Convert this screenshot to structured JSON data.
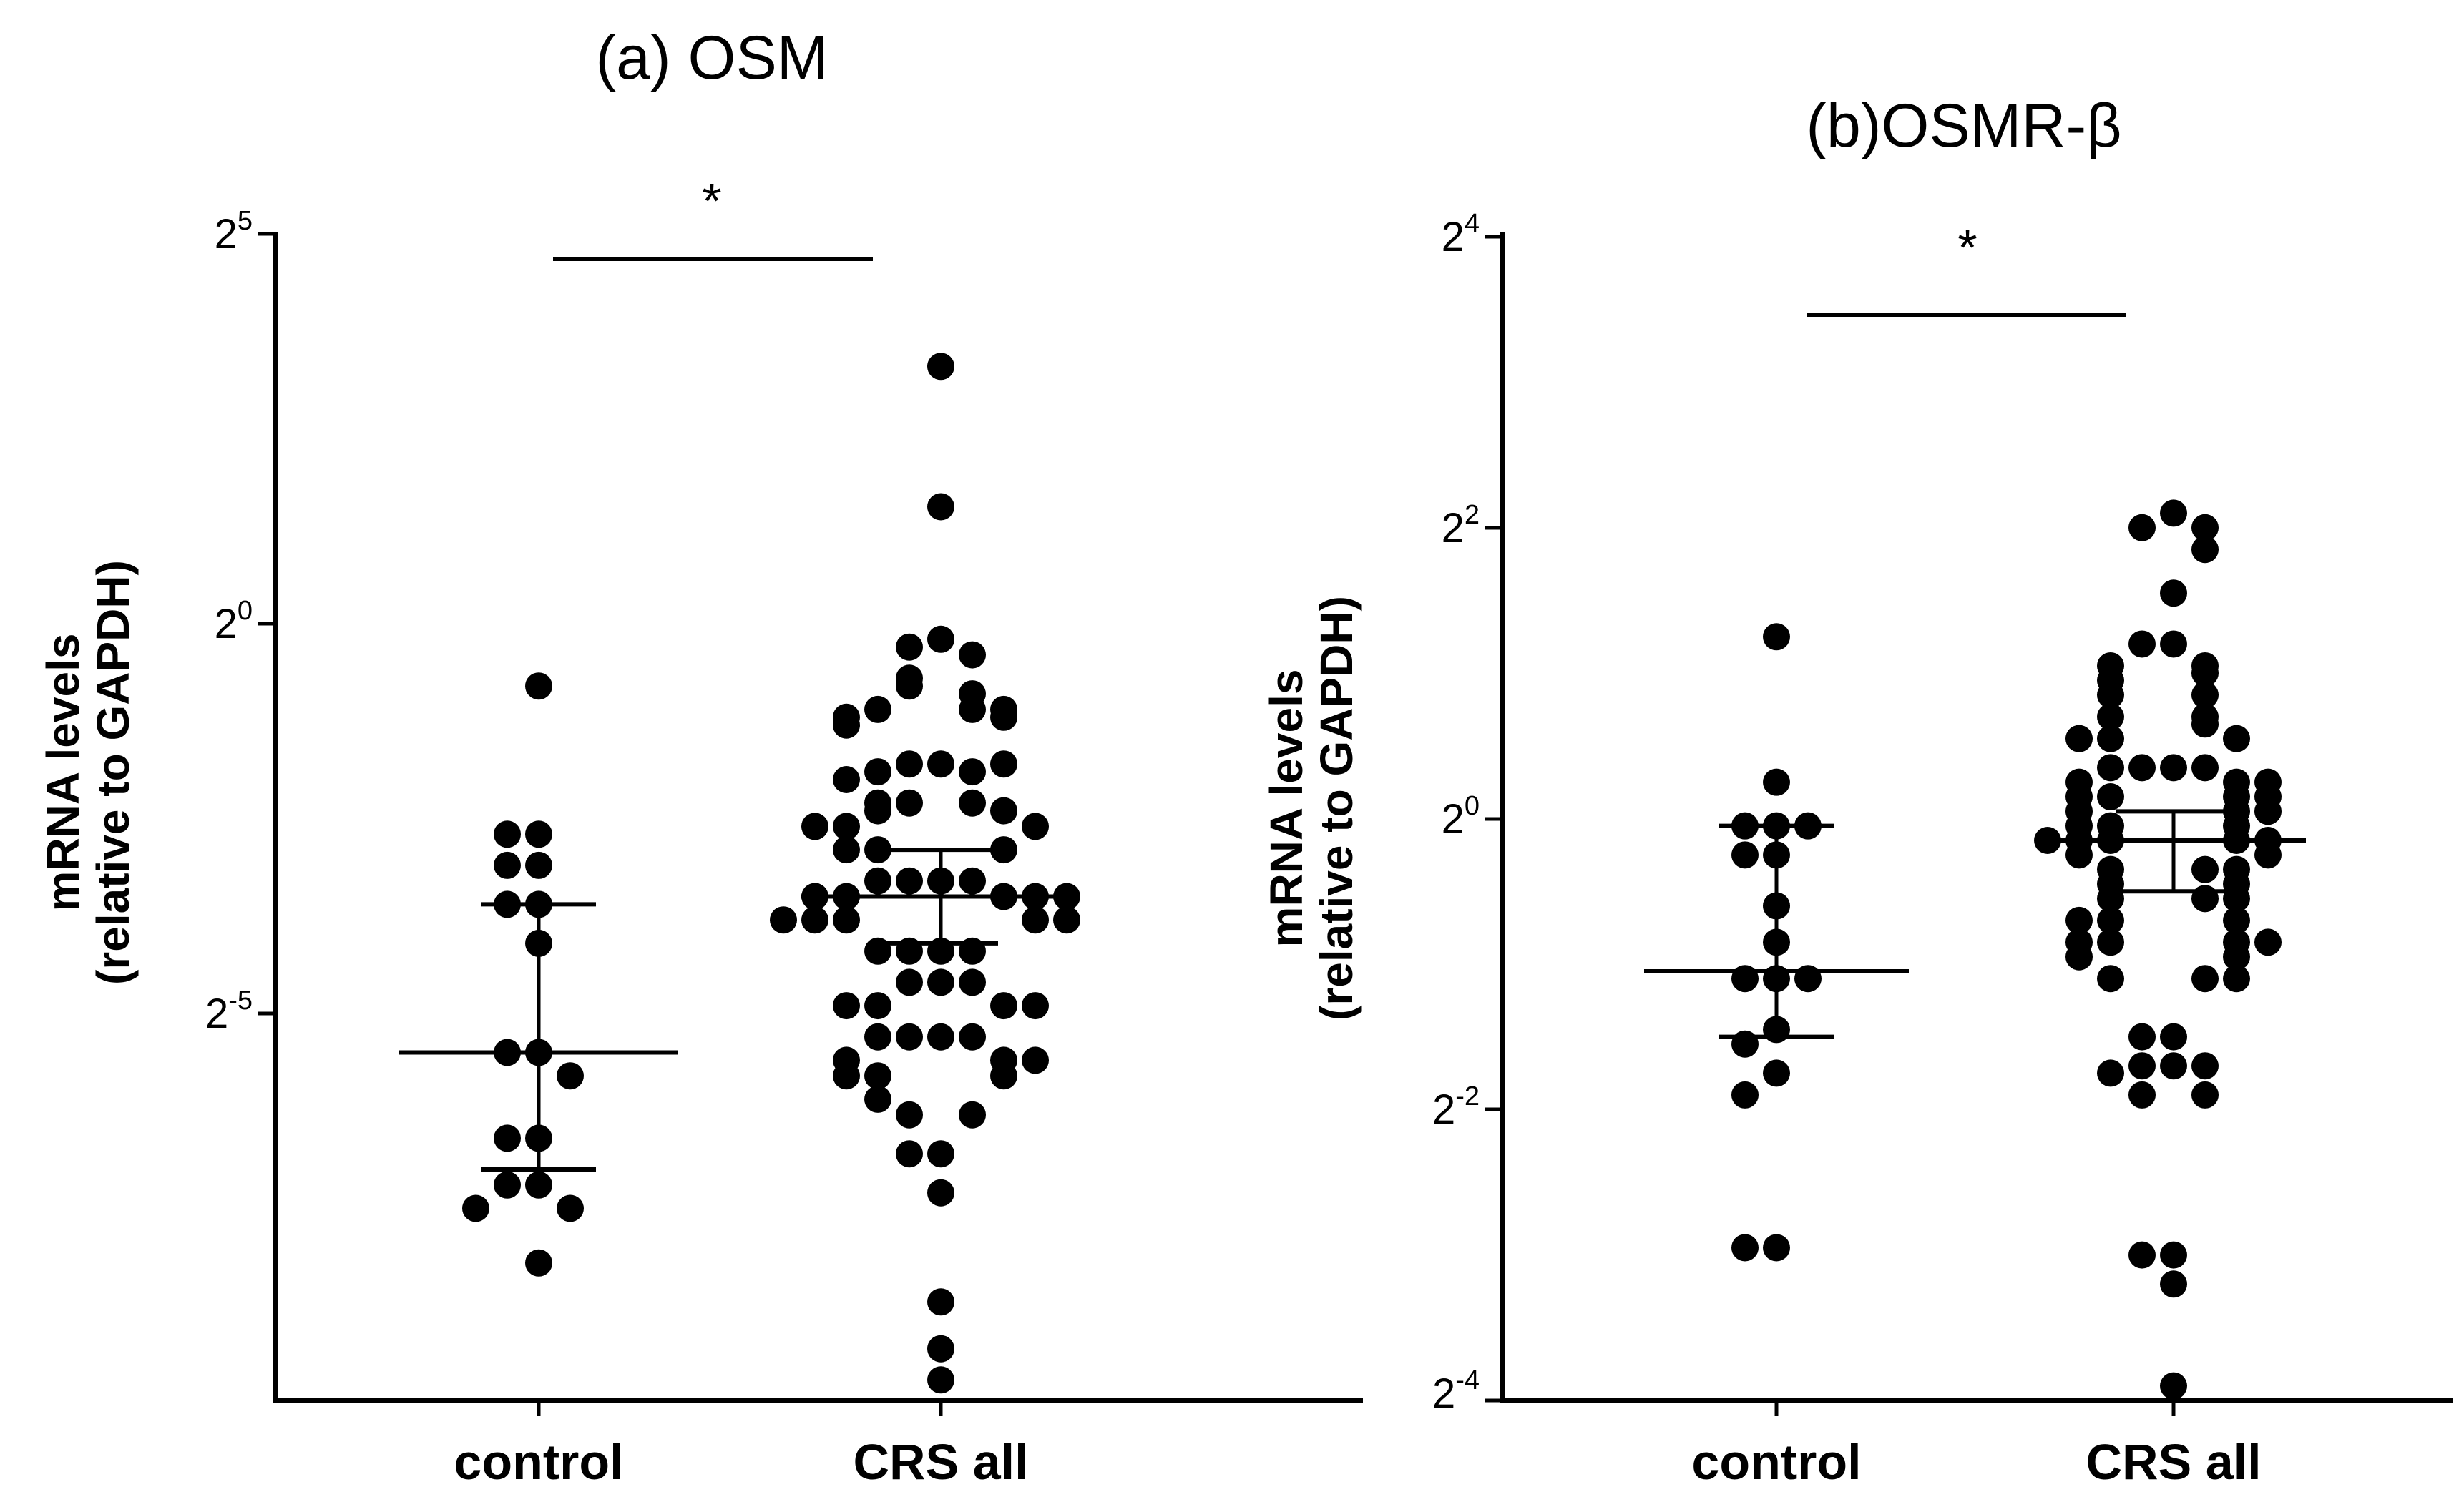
{
  "chart_data": [
    {
      "type": "scatter",
      "title": "(a) OSM",
      "ylabel_line1": "mRNA levels",
      "ylabel_line2": "(relative to GAPDH)",
      "xlabel": "",
      "categories": [
        "control",
        "CRS all"
      ],
      "y_scale": "log2",
      "ylim_exponent": [
        -9.9,
        5
      ],
      "yticks": [
        {
          "base": "2",
          "exp": "5",
          "value": 5
        },
        {
          "base": "2",
          "exp": "0",
          "value": 0
        },
        {
          "base": "2",
          "exp": "-5",
          "value": -5
        }
      ],
      "significance": "*",
      "series": [
        {
          "name": "control",
          "median_log2": -5.5,
          "iqr_log2": [
            -7.0,
            -3.6
          ],
          "values_log2": [
            -0.8,
            -2.7,
            -2.7,
            -3.1,
            -3.1,
            -3.6,
            -3.6,
            -4.1,
            -5.5,
            -5.5,
            -5.8,
            -6.6,
            -6.6,
            -7.2,
            -7.2,
            -7.5,
            -7.5,
            -8.2
          ]
        },
        {
          "name": "CRS all",
          "median_log2": -3.5,
          "iqr_log2": [
            -4.1,
            -2.9
          ],
          "values_log2": [
            3.3,
            1.5,
            -0.2,
            -0.3,
            -0.4,
            -0.7,
            -0.8,
            -0.9,
            -1.1,
            -1.1,
            -1.1,
            -1.2,
            -1.2,
            -1.3,
            -1.8,
            -1.8,
            -1.9,
            -1.9,
            -1.8,
            -2.0,
            -2.3,
            -2.3,
            -2.3,
            -2.4,
            -2.4,
            -2.6,
            -2.6,
            -2.6,
            -2.9,
            -2.9,
            -2.9,
            -3.3,
            -3.3,
            -3.3,
            -3.3,
            -3.5,
            -3.5,
            -3.5,
            -3.5,
            -3.5,
            -3.8,
            -3.8,
            -3.8,
            -3.8,
            -3.8,
            -4.2,
            -4.2,
            -4.2,
            -4.2,
            -4.6,
            -4.6,
            -4.6,
            -4.9,
            -4.9,
            -4.9,
            -4.9,
            -5.3,
            -5.3,
            -5.3,
            -5.3,
            -5.6,
            -5.6,
            -5.6,
            -5.8,
            -5.8,
            -5.8,
            -6.1,
            -6.3,
            -6.3,
            -6.8,
            -6.8,
            -7.3,
            -8.7,
            -9.3,
            -9.7
          ]
        }
      ]
    },
    {
      "type": "scatter",
      "title": "(b)OSMR-β",
      "ylabel_line1": "mRNA levels",
      "ylabel_line2": "(relative to GAPDH)",
      "xlabel": "",
      "categories": [
        "control",
        "CRS all"
      ],
      "y_scale": "log2",
      "ylim_exponent": [
        -4,
        4
      ],
      "yticks": [
        {
          "base": "2",
          "exp": "4",
          "value": 4
        },
        {
          "base": "2",
          "exp": "2",
          "value": 2
        },
        {
          "base": "2",
          "exp": "0",
          "value": 0
        },
        {
          "base": "2",
          "exp": "-2",
          "value": -2
        },
        {
          "base": "2",
          "exp": "-4",
          "value": -4
        }
      ],
      "significance": "*",
      "series": [
        {
          "name": "control",
          "median_log2": -1.05,
          "iqr_log2": [
            -1.5,
            -0.05
          ],
          "values_log2": [
            1.25,
            0.25,
            -0.05,
            -0.05,
            -0.05,
            -0.25,
            -0.25,
            -0.6,
            -0.85,
            -1.1,
            -1.1,
            -1.1,
            -1.45,
            -1.55,
            -1.75,
            -1.9,
            -2.95,
            -2.95
          ]
        },
        {
          "name": "CRS all",
          "median_log2": -0.15,
          "iqr_log2": [
            -0.5,
            0.05
          ],
          "values_log2": [
            2.1,
            2.0,
            2.0,
            1.85,
            1.55,
            1.2,
            1.2,
            1.05,
            1.05,
            1.0,
            0.95,
            0.85,
            0.85,
            0.7,
            0.7,
            0.65,
            0.55,
            0.55,
            0.55,
            0.35,
            0.35,
            0.35,
            0.35,
            0.25,
            0.25,
            0.25,
            0.15,
            0.15,
            0.15,
            0.15,
            0.05,
            0.05,
            0.05,
            -0.05,
            -0.05,
            -0.05,
            -0.15,
            -0.15,
            -0.15,
            -0.15,
            -0.15,
            -0.25,
            -0.25,
            -0.35,
            -0.35,
            -0.35,
            -0.45,
            -0.45,
            -0.55,
            -0.55,
            -0.55,
            -0.7,
            -0.7,
            -0.7,
            -0.85,
            -0.85,
            -0.85,
            -0.85,
            -0.95,
            -0.95,
            -1.1,
            -1.1,
            -1.1,
            -1.5,
            -1.5,
            -1.7,
            -1.7,
            -1.7,
            -1.75,
            -1.9,
            -1.9,
            -3.0,
            -3.0,
            -3.2,
            -3.9
          ]
        }
      ]
    }
  ]
}
